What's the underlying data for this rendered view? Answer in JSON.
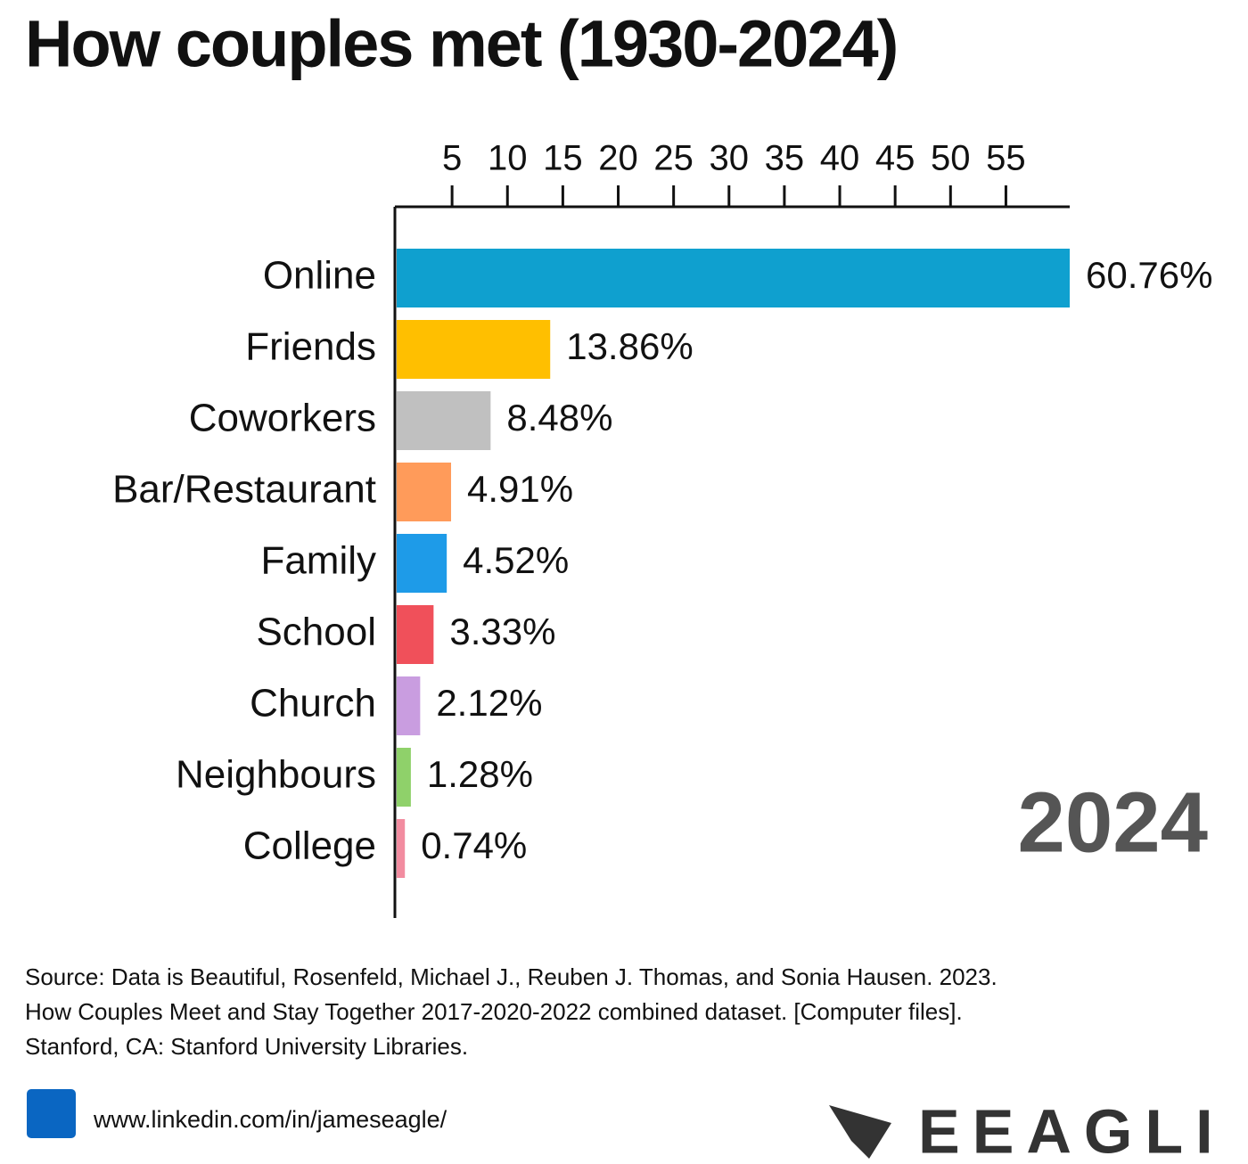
{
  "chart_data": {
    "type": "bar",
    "orientation": "horizontal",
    "title": "How couples met (1930-2024)",
    "categories": [
      "Online",
      "Friends",
      "Coworkers",
      "Bar/Restaurant",
      "Family",
      "School",
      "Church",
      "Neighbours",
      "College"
    ],
    "values": [
      60.76,
      13.86,
      8.48,
      4.91,
      4.52,
      3.33,
      2.12,
      1.28,
      0.74
    ],
    "value_labels": [
      "60.76%",
      "13.86%",
      "8.48%",
      "4.91%",
      "4.52%",
      "3.33%",
      "2.12%",
      "1.28%",
      "0.74%"
    ],
    "colors": [
      "#0fa0cf",
      "#ffbf00",
      "#c0c0c0",
      "#ff9b5a",
      "#1e9be8",
      "#f0505a",
      "#c99de0",
      "#8fd16a",
      "#f28ca0"
    ],
    "xlim": [
      0,
      60.76
    ],
    "xticks": [
      5,
      10,
      15,
      20,
      25,
      30,
      35,
      40,
      45,
      50,
      55
    ],
    "annotation": "2024",
    "source": [
      "Source: Data is Beautiful, Rosenfeld, Michael J., Reuben J. Thomas, and Sonia Hausen. 2023.",
      "How Couples Meet and Stay Together 2017-2020-2022 combined dataset. [Computer files].",
      "Stanford, CA: Stanford University Libraries."
    ],
    "url": "www.linkedin.com/in/jameseagle/",
    "logo": "EEAGLI"
  }
}
